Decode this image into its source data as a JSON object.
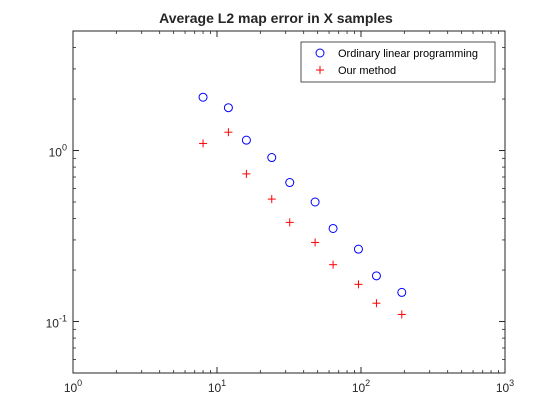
{
  "chart_data": {
    "type": "scatter",
    "title": "Average L2 map error in X samples",
    "xlabel": "",
    "ylabel": "",
    "xscale": "log",
    "yscale": "log",
    "xlim": [
      1,
      1000
    ],
    "ylim": [
      0.05,
      5
    ],
    "grid": false,
    "legend_position": "top-right",
    "x_ticks": [
      1,
      10,
      100,
      1000
    ],
    "x_tick_labels": [
      {
        "base": "10",
        "exp": "0"
      },
      {
        "base": "10",
        "exp": "1"
      },
      {
        "base": "10",
        "exp": "2"
      },
      {
        "base": "10",
        "exp": "3"
      }
    ],
    "y_ticks": [
      0.1,
      1
    ],
    "y_tick_labels": [
      {
        "base": "10",
        "exp": "-1"
      },
      {
        "base": "10",
        "exp": "0"
      }
    ],
    "series": [
      {
        "name": "Ordinary linear programming",
        "marker": "circle",
        "color": "#0000ff",
        "x": [
          8,
          12,
          16,
          24,
          32,
          48,
          64,
          96,
          128,
          192
        ],
        "y": [
          2.05,
          1.78,
          1.15,
          0.91,
          0.65,
          0.5,
          0.35,
          0.265,
          0.185,
          0.148
        ]
      },
      {
        "name": "Our method",
        "marker": "plus",
        "color": "#ff0000",
        "x": [
          8,
          12,
          16,
          24,
          32,
          48,
          64,
          96,
          128,
          192
        ],
        "y": [
          1.1,
          1.28,
          0.73,
          0.52,
          0.38,
          0.29,
          0.215,
          0.165,
          0.128,
          0.11
        ]
      }
    ]
  }
}
